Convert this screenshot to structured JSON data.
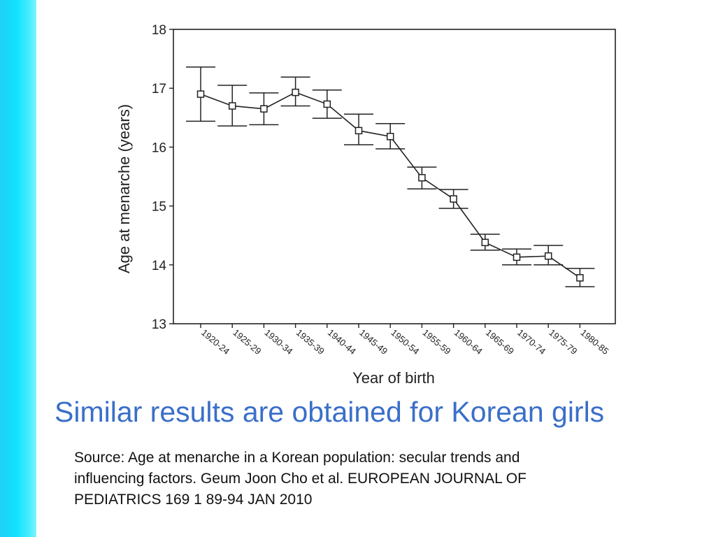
{
  "slide": {
    "title": "Similar results are obtained for Korean girls",
    "source": "Source: Age at menarche in a Korean population: secular trends and\ninfluencing factors. Geum Joon Cho et al. EUROPEAN JOURNAL OF\nPEDIATRICS  169  1  89-94  JAN 2010",
    "accent_color": "#3a6fc9",
    "side_bar_color": "#10e2ff"
  },
  "chart_data": {
    "type": "line",
    "title": "",
    "xlabel": "Year of birth",
    "ylabel": "Age at menarche (years)",
    "ylim": [
      13,
      18
    ],
    "yticks": [
      13,
      14,
      15,
      16,
      17,
      18
    ],
    "categories": [
      "1920-24",
      "1925-29",
      "1930-34",
      "1935-39",
      "1940-44",
      "1945-49",
      "1950-54",
      "1955-59",
      "1960-64",
      "1965-69",
      "1970-74",
      "1975-79",
      "1980-85"
    ],
    "series": [
      {
        "values": [
          16.9,
          16.7,
          16.65,
          16.93,
          16.73,
          16.28,
          16.18,
          15.48,
          15.12,
          14.38,
          14.13,
          14.15,
          13.78
        ],
        "error_low": [
          16.44,
          16.36,
          16.38,
          16.7,
          16.49,
          16.04,
          15.97,
          15.29,
          14.96,
          14.25,
          14.0,
          14.0,
          13.63
        ],
        "error_high": [
          17.36,
          17.05,
          16.92,
          17.19,
          16.97,
          16.56,
          16.4,
          15.66,
          15.28,
          14.52,
          14.27,
          14.33,
          13.94
        ],
        "marker": "square",
        "color": "#222222"
      }
    ],
    "grid": false,
    "legend": "none"
  }
}
